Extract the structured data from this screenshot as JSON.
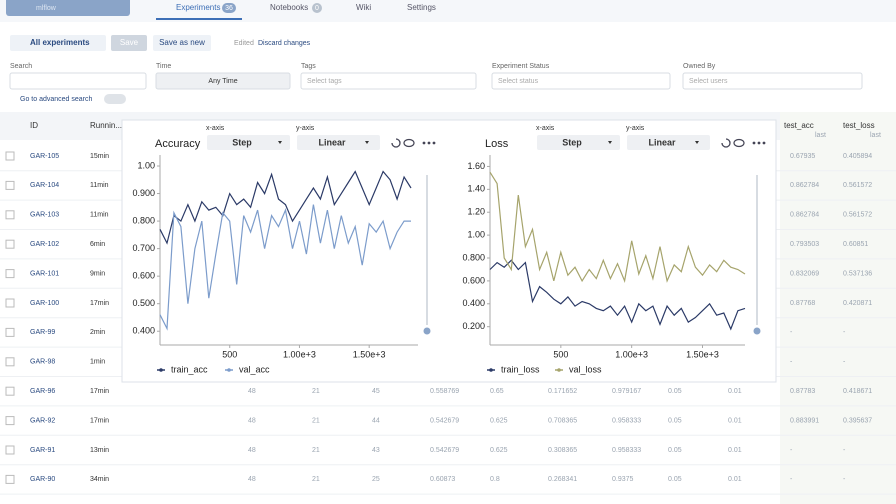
{
  "nav": {
    "owner": "mlflow",
    "tabs": [
      {
        "label": "Experiments",
        "badge": 36
      },
      {
        "label": "Notebooks",
        "badge": 0
      },
      {
        "label": "Wiki"
      },
      {
        "label": "Settings"
      }
    ]
  },
  "toolbar": {
    "view": "All experiments",
    "save": "Save",
    "save_new": "Save as new",
    "edited": "Edited",
    "discard": "Discard changes"
  },
  "filters": [
    {
      "label": "Search",
      "placeholder": ""
    },
    {
      "label": "Time",
      "placeholder": "Any Time"
    },
    {
      "label": "Tags",
      "placeholder": "Select tags"
    },
    {
      "label": "Experiment Status",
      "placeholder": "Select status"
    },
    {
      "label": "Owned By",
      "placeholder": "Select users"
    }
  ],
  "advanced": "Go to advanced search",
  "table": {
    "columns": [
      "ID",
      "Runnin...",
      "test_acc",
      "test_loss"
    ],
    "sub": "last",
    "rows": [
      {
        "id": "GAR-105",
        "time": "15min",
        "test_acc": "0.67935",
        "test_loss": "0.405894"
      },
      {
        "id": "GAR-104",
        "time": "11min",
        "test_acc": "0.862784",
        "test_loss": "0.561572"
      },
      {
        "id": "GAR-103",
        "time": "11min",
        "test_acc": "0.862784",
        "test_loss": "0.561572"
      },
      {
        "id": "GAR-102",
        "time": "6min",
        "test_acc": "0.793503",
        "test_loss": "0.60851"
      },
      {
        "id": "GAR-101",
        "time": "9min",
        "test_acc": "0.832069",
        "test_loss": "0.537136"
      },
      {
        "id": "GAR-100",
        "time": "17min",
        "test_acc": "0.87768",
        "test_loss": "0.420871"
      },
      {
        "id": "GAR-99",
        "time": "2min",
        "test_acc": "-",
        "test_loss": "-"
      },
      {
        "id": "GAR-98",
        "time": "1min",
        "test_acc": "-",
        "test_loss": "-"
      },
      {
        "id": "GAR-96",
        "time": "17min",
        "mid": [
          "48",
          "21",
          "45",
          "0.558769",
          "0.65",
          "0.171652",
          "0.979167",
          "0.05",
          "0.01"
        ],
        "test_acc": "0.87783",
        "test_loss": "0.418671"
      },
      {
        "id": "GAR-92",
        "time": "17min",
        "mid": [
          "48",
          "21",
          "44",
          "0.542679",
          "0.625",
          "0.708365",
          "0.958333",
          "0.05",
          "0.01"
        ],
        "test_acc": "0.883991",
        "test_loss": "0.395637"
      },
      {
        "id": "GAR-91",
        "time": "13min",
        "mid": [
          "48",
          "21",
          "43",
          "0.542679",
          "0.625",
          "0.308365",
          "0.958333",
          "0.05",
          "0.01"
        ],
        "test_acc": "-",
        "test_loss": "-"
      },
      {
        "id": "GAR-90",
        "time": "34min",
        "mid": [
          "48",
          "21",
          "25",
          "0.60873",
          "0.8",
          "0.268341",
          "0.9375",
          "0.05",
          "0.01"
        ],
        "test_acc": "-",
        "test_loss": "-"
      }
    ]
  },
  "charts": [
    {
      "type": "line",
      "title": "Accuracy",
      "xaxis_label": "x-axis",
      "yaxis_label": "y-axis",
      "x_mode": "Step",
      "y_mode": "Linear",
      "x": [
        0,
        50,
        100,
        150,
        200,
        250,
        300,
        350,
        400,
        450,
        500,
        550,
        600,
        650,
        700,
        750,
        800,
        850,
        900,
        950,
        1000,
        1050,
        1100,
        1150,
        1200,
        1250,
        1300,
        1350,
        1400,
        1450,
        1500,
        1550,
        1600,
        1650,
        1700,
        1750,
        1800
      ],
      "xlim": [
        0,
        1850
      ],
      "xticks": [
        500,
        {
          "value": 1000,
          "label": "1.00e+3"
        },
        {
          "value": 1500,
          "label": "1.50e+3"
        }
      ],
      "ylim": [
        0.35,
        1.04
      ],
      "yticks": [
        {
          "value": 0.4,
          "label": "0.400"
        },
        {
          "value": 0.5,
          "label": "0.500"
        },
        {
          "value": 0.6,
          "label": "0.600"
        },
        {
          "value": 0.7,
          "label": "0.700"
        },
        {
          "value": 0.8,
          "label": "0.800"
        },
        {
          "value": 0.9,
          "label": "0.900"
        },
        {
          "value": 1.0,
          "label": "1.00"
        }
      ],
      "series": [
        {
          "name": "train_acc",
          "color": "#2b3a67",
          "values": [
            0.77,
            0.72,
            0.82,
            0.8,
            0.86,
            0.8,
            0.87,
            0.84,
            0.85,
            0.82,
            0.9,
            0.86,
            0.88,
            0.85,
            0.94,
            0.9,
            0.97,
            0.88,
            0.86,
            0.8,
            0.84,
            0.88,
            0.92,
            0.88,
            0.96,
            0.86,
            0.9,
            0.94,
            0.98,
            0.92,
            0.86,
            0.92,
            0.98,
            0.95,
            0.88,
            0.96,
            0.92
          ]
        },
        {
          "name": "val_acc",
          "color": "#7c9ccb",
          "values": [
            0.46,
            0.41,
            0.83,
            0.78,
            0.5,
            0.7,
            0.8,
            0.52,
            0.68,
            0.83,
            0.8,
            0.57,
            0.82,
            0.76,
            0.84,
            0.7,
            0.82,
            0.78,
            0.84,
            0.7,
            0.8,
            0.68,
            0.86,
            0.72,
            0.84,
            0.7,
            0.82,
            0.72,
            0.78,
            0.64,
            0.79,
            0.76,
            0.8,
            0.7,
            0.76,
            0.8,
            0.8
          ]
        }
      ]
    },
    {
      "type": "line",
      "title": "Loss",
      "xaxis_label": "x-axis",
      "yaxis_label": "y-axis",
      "x_mode": "Step",
      "y_mode": "Linear",
      "x": [
        0,
        50,
        100,
        150,
        200,
        250,
        300,
        350,
        400,
        450,
        500,
        550,
        600,
        650,
        700,
        750,
        800,
        850,
        900,
        950,
        1000,
        1050,
        1100,
        1150,
        1200,
        1250,
        1300,
        1350,
        1400,
        1450,
        1500,
        1550,
        1600,
        1650,
        1700,
        1750,
        1800
      ],
      "xlim": [
        0,
        1800
      ],
      "xticks": [
        500,
        {
          "value": 1000,
          "label": "1.00e+3"
        },
        {
          "value": 1500,
          "label": "1.50e+3"
        }
      ],
      "ylim": [
        0.04,
        1.7
      ],
      "yticks": [
        {
          "value": 0.2,
          "label": "0.200"
        },
        {
          "value": 0.4,
          "label": "0.400"
        },
        {
          "value": 0.6,
          "label": "0.600"
        },
        {
          "value": 0.8,
          "label": "0.800"
        },
        {
          "value": 1.0,
          "label": "1.00"
        },
        {
          "value": 1.2,
          "label": "1.20"
        },
        {
          "value": 1.4,
          "label": "1.40"
        },
        {
          "value": 1.6,
          "label": "1.60"
        }
      ],
      "series": [
        {
          "name": "train_loss",
          "color": "#2b3a67",
          "values": [
            0.7,
            0.76,
            0.72,
            0.78,
            0.7,
            0.76,
            0.42,
            0.55,
            0.5,
            0.44,
            0.4,
            0.46,
            0.38,
            0.42,
            0.4,
            0.36,
            0.34,
            0.38,
            0.3,
            0.38,
            0.24,
            0.4,
            0.34,
            0.38,
            0.22,
            0.38,
            0.3,
            0.36,
            0.24,
            0.28,
            0.34,
            0.4,
            0.3,
            0.32,
            0.18,
            0.34,
            0.36
          ]
        },
        {
          "name": "val_loss",
          "color": "#a6a46c",
          "values": [
            1.55,
            1.45,
            0.8,
            0.7,
            1.35,
            0.9,
            1.05,
            0.7,
            0.85,
            0.6,
            0.85,
            0.65,
            0.72,
            0.6,
            0.7,
            0.62,
            0.78,
            0.62,
            0.75,
            0.6,
            0.95,
            0.66,
            0.82,
            0.62,
            0.9,
            0.6,
            0.74,
            0.68,
            0.9,
            0.72,
            0.65,
            0.74,
            0.68,
            0.78,
            0.72,
            0.7,
            0.66
          ]
        }
      ]
    }
  ]
}
